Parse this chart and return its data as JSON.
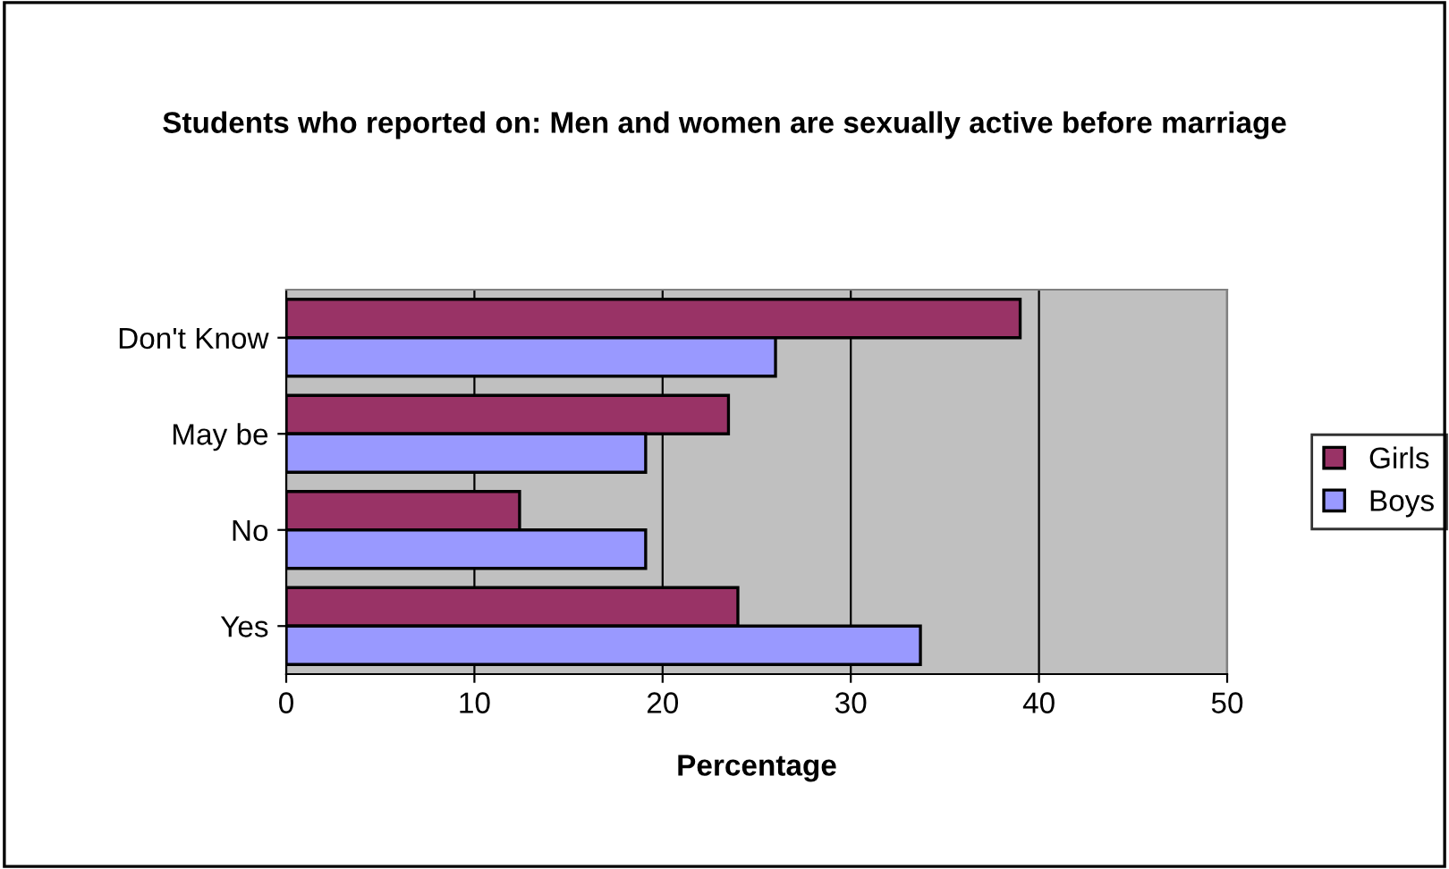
{
  "chart_data": {
    "type": "bar",
    "orientation": "horizontal",
    "title": "Students who reported on: Men and women are sexually active before marriage",
    "xlabel": "Percentage",
    "categories": [
      "Don't Know",
      "May be",
      "No",
      "Yes"
    ],
    "series": [
      {
        "name": "Girls",
        "color": "#993366",
        "values": [
          39,
          23.5,
          12.4,
          24
        ]
      },
      {
        "name": "Boys",
        "color": "#9999ff",
        "values": [
          26,
          19.1,
          19.1,
          33.7
        ]
      }
    ],
    "xlim": [
      0,
      50
    ],
    "xticks": [
      0,
      10,
      20,
      30,
      40,
      50
    ],
    "grid": "x",
    "legend": "right"
  }
}
